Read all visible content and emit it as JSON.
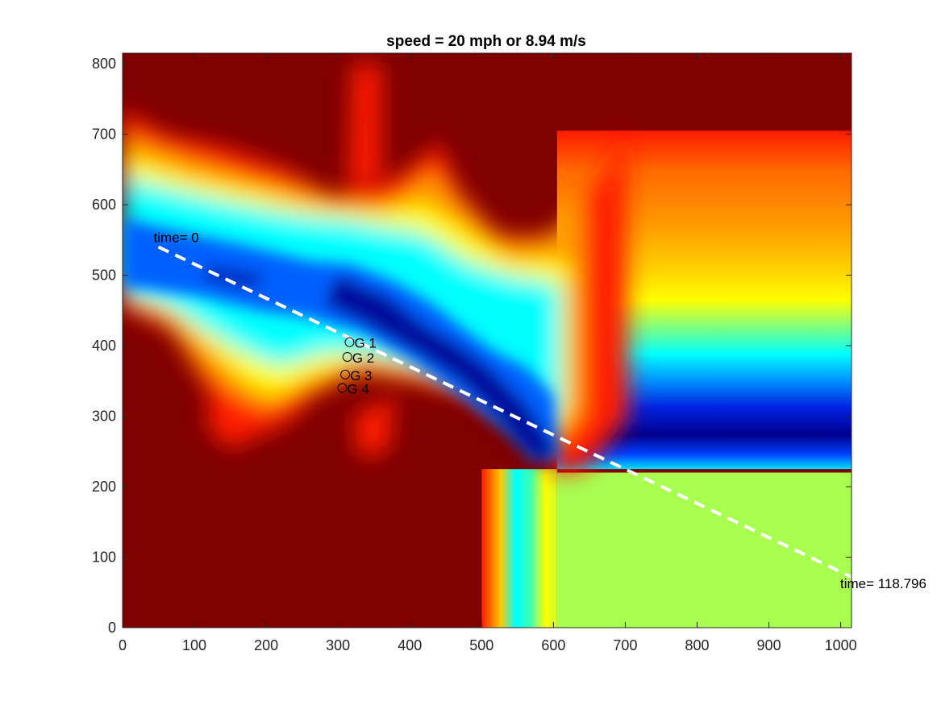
{
  "chart_data": {
    "type": "heatmap",
    "title": "speed = 20 mph or 8.94 m/s",
    "xlabel": "",
    "ylabel": "",
    "xlim": [
      0,
      1015
    ],
    "ylim": [
      0,
      815
    ],
    "x_ticks": [
      0,
      100,
      200,
      300,
      400,
      500,
      600,
      700,
      800,
      900,
      1000
    ],
    "y_ticks": [
      0,
      100,
      200,
      300,
      400,
      500,
      600,
      700,
      800
    ],
    "colormap": "jet",
    "path": {
      "style": "white dashed line",
      "start": {
        "x": 50,
        "y": 540,
        "label": "time= 0"
      },
      "end": {
        "x": 1015,
        "y": 72,
        "label": "time= 118.796"
      }
    },
    "markers": [
      {
        "label": "G 1",
        "x": 316,
        "y": 405
      },
      {
        "label": "G 2",
        "x": 313,
        "y": 384
      },
      {
        "label": "G 3",
        "x": 310,
        "y": 359
      },
      {
        "label": "G 4",
        "x": 306,
        "y": 340
      }
    ],
    "colors": {
      "dark_red": "#800000",
      "red": "#ff1a00",
      "orange": "#ff9c00",
      "yellow": "#ffff00",
      "light_green": "#a8ff50",
      "cyan": "#00ffff",
      "blue": "#0060ff",
      "dark_blue": "#00008c"
    }
  }
}
